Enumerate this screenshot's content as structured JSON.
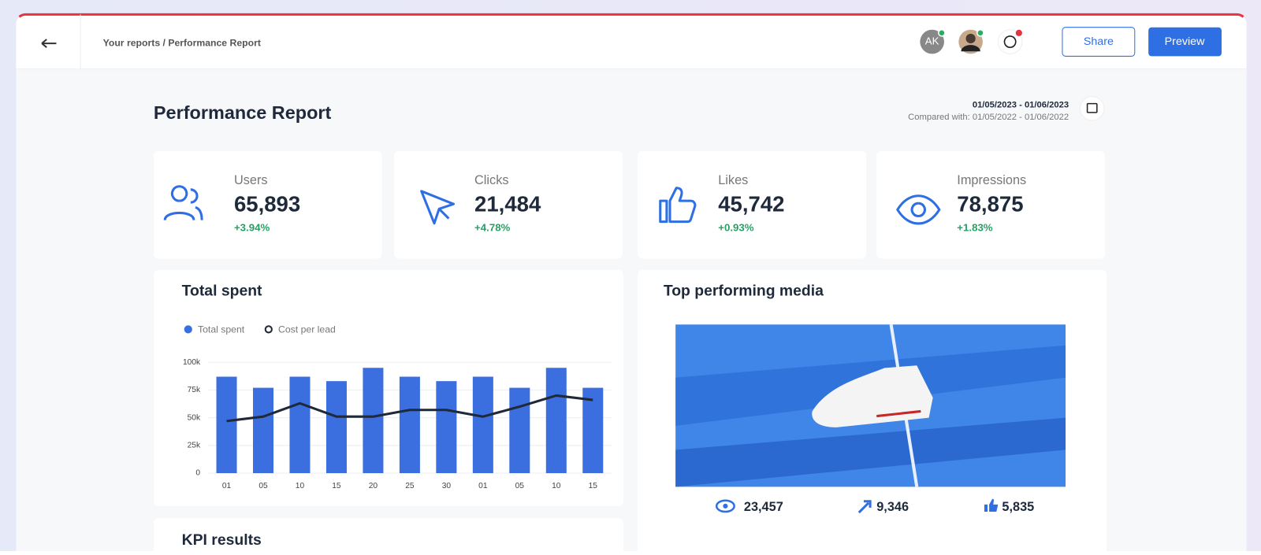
{
  "header": {
    "breadcrumb": "Your reports / Performance Report",
    "avatar_initials": "AK",
    "share": "Share",
    "preview": "Preview"
  },
  "report": {
    "title": "Performance Report",
    "date_range": "01/05/2023 - 01/06/2023",
    "compared": "Compared with: 01/05/2022 - 01/06/2022"
  },
  "kpis": [
    {
      "label": "Users",
      "value": "65,893",
      "change": "+3.94%"
    },
    {
      "label": "Clicks",
      "value": "21,484",
      "change": "+4.78%"
    },
    {
      "label": "Likes",
      "value": "45,742",
      "change": "+0.93%"
    },
    {
      "label": "Impressions",
      "value": "78,875",
      "change": "+1.83%"
    }
  ],
  "total_spent": {
    "type": "bar",
    "title": "Total spent",
    "categories": [
      "01",
      "05",
      "10",
      "15",
      "20",
      "25",
      "30",
      "01",
      "05",
      "10",
      "15"
    ],
    "series": [
      {
        "name": "Total spent",
        "type": "bar",
        "color": "#3b6fe0",
        "values": [
          87000,
          77000,
          87000,
          83000,
          95000,
          87000,
          83000,
          87000,
          77000,
          95000,
          77000
        ]
      },
      {
        "name": "Cost per lead",
        "type": "line",
        "color": "#1f2937",
        "values": [
          47000,
          51000,
          63000,
          51000,
          51000,
          57000,
          57000,
          51000,
          60000,
          70000,
          66000
        ]
      }
    ],
    "ylim": [
      0,
      100000
    ],
    "yticks": [
      0,
      {
        "value": 25000,
        "label": "25k"
      },
      {
        "value": 50000,
        "label": "50k"
      },
      {
        "value": 75000,
        "label": "75k"
      },
      {
        "value": 100000,
        "label": "100k"
      }
    ],
    "grid": true
  },
  "media": {
    "title": "Top performing media",
    "views": "23,457",
    "shares": "9,346",
    "likes": "5,835"
  },
  "kpi_results": {
    "title": "KPI results"
  }
}
